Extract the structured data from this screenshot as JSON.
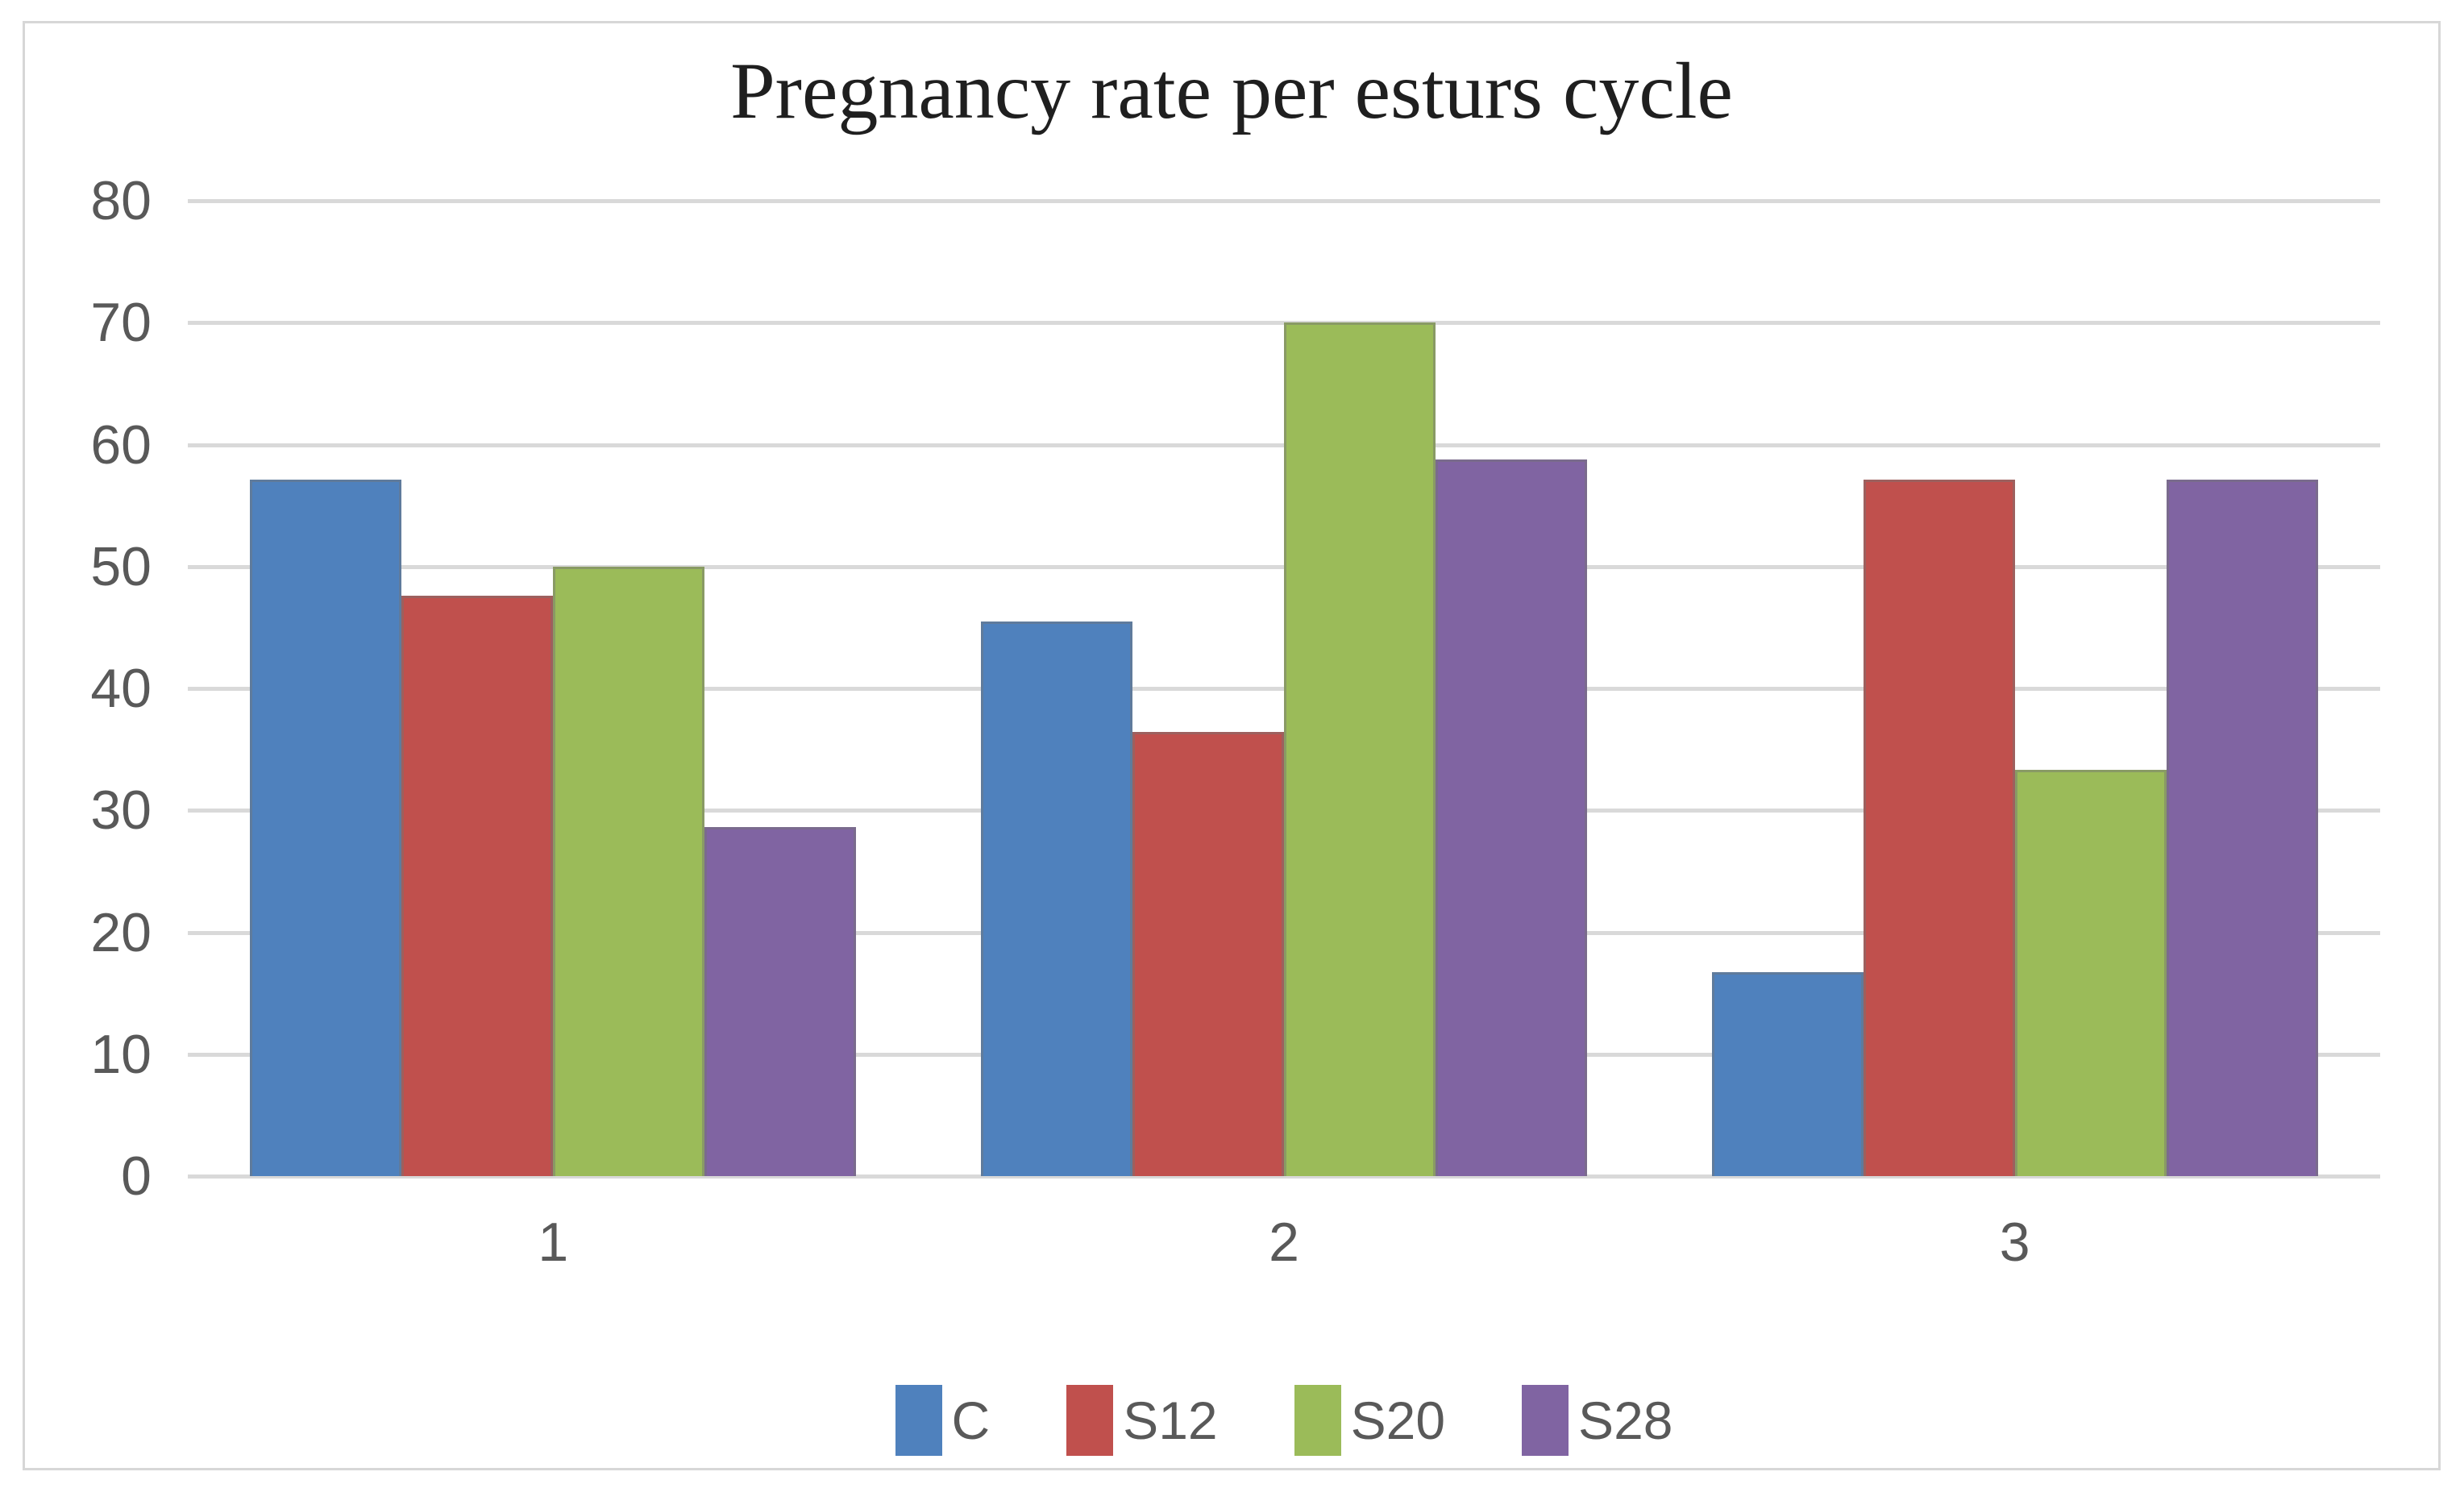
{
  "chart_data": {
    "type": "bar",
    "title": "Pregnancy rate per esturs cycle",
    "xlabel": "",
    "ylabel": "",
    "categories": [
      "1",
      "2",
      "3"
    ],
    "series": [
      {
        "name": "C",
        "color": "#4F81BD",
        "values": [
          57.1,
          45.5,
          16.7
        ]
      },
      {
        "name": "S12",
        "color": "#C0504D",
        "values": [
          47.6,
          36.4,
          57.1
        ]
      },
      {
        "name": "S20",
        "color": "#9BBB59",
        "values": [
          50.0,
          70.0,
          33.3
        ]
      },
      {
        "name": "S28",
        "color": "#8064A2",
        "values": [
          28.6,
          58.8,
          57.1
        ]
      }
    ],
    "ylim": [
      0,
      80
    ],
    "ytick_step": 10,
    "yticks": [
      "0",
      "10",
      "20",
      "30",
      "40",
      "50",
      "60",
      "70",
      "80"
    ],
    "grid": true,
    "legend_position": "bottom",
    "colors": {
      "gridline": "#d9d9d9",
      "tick_text": "#595959",
      "title_text": "#1f1f1f",
      "frame_border": "#d7d7d7",
      "background": "#ffffff"
    }
  }
}
